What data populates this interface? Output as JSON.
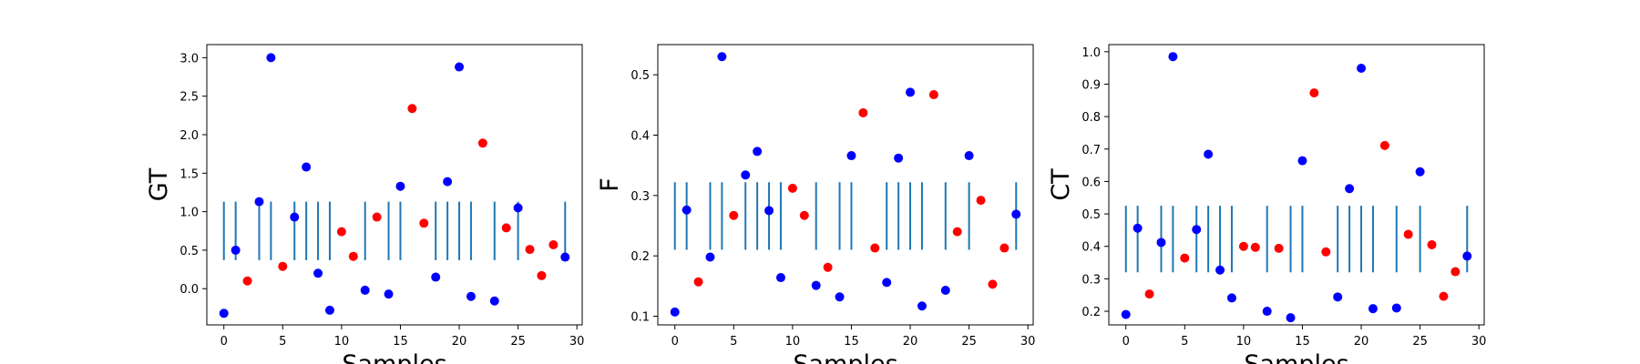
{
  "chart_data": [
    {
      "type": "scatter",
      "ylabel": "GT",
      "xlabel": "Samples",
      "xlim": [
        -1.45,
        30.45
      ],
      "ylim": [
        -0.47,
        3.17
      ],
      "xticks": [
        0,
        5,
        10,
        15,
        20,
        25,
        30
      ],
      "xtick_labels": [
        "0",
        "5",
        "10",
        "15",
        "20",
        "25",
        "30"
      ],
      "yticks": [
        0.0,
        0.5,
        1.0,
        1.5,
        2.0,
        2.5,
        3.0
      ],
      "ytick_labels": [
        "0.0",
        "0.5",
        "1.0",
        "1.5",
        "2.0",
        "2.5",
        "3.0"
      ],
      "vline_positions": [
        0,
        1,
        3,
        4,
        6,
        7,
        8,
        9,
        12,
        14,
        15,
        18,
        19,
        20,
        21,
        23,
        25,
        29
      ],
      "vline_range": [
        0.37,
        1.13
      ],
      "series": [
        {
          "color": "#0000ff",
          "x": [
            0,
            1,
            3,
            4,
            6,
            7,
            8,
            9,
            12,
            14,
            15,
            18,
            19,
            20,
            21,
            23,
            25,
            29
          ],
          "y": [
            -0.32,
            0.5,
            1.13,
            3.0,
            0.93,
            1.58,
            0.2,
            -0.28,
            -0.02,
            -0.07,
            1.33,
            0.15,
            1.39,
            2.88,
            -0.1,
            -0.16,
            1.05,
            0.41
          ]
        },
        {
          "color": "#ff0000",
          "x": [
            2,
            5,
            10,
            11,
            13,
            16,
            17,
            22,
            24,
            26,
            27,
            28
          ],
          "y": [
            0.1,
            0.29,
            0.74,
            0.42,
            0.93,
            2.34,
            0.85,
            1.89,
            0.79,
            0.51,
            0.17,
            0.57
          ]
        }
      ]
    },
    {
      "type": "scatter",
      "ylabel": "F",
      "xlabel": "Samples",
      "xlim": [
        -1.45,
        30.45
      ],
      "ylim": [
        0.0857,
        0.55
      ],
      "xticks": [
        0,
        5,
        10,
        15,
        20,
        25,
        30
      ],
      "xtick_labels": [
        "0",
        "5",
        "10",
        "15",
        "20",
        "25",
        "30"
      ],
      "yticks": [
        0.1,
        0.2,
        0.3,
        0.4,
        0.5
      ],
      "ytick_labels": [
        "0.1",
        "0.2",
        "0.3",
        "0.4",
        "0.5"
      ],
      "vline_positions": [
        0,
        1,
        3,
        4,
        6,
        7,
        8,
        9,
        12,
        14,
        15,
        18,
        19,
        20,
        21,
        23,
        25,
        29
      ],
      "vline_range": [
        0.21,
        0.322
      ],
      "series": [
        {
          "color": "#0000ff",
          "x": [
            0,
            1,
            3,
            4,
            6,
            7,
            8,
            9,
            12,
            14,
            15,
            18,
            19,
            20,
            21,
            23,
            25,
            29
          ],
          "y": [
            0.107,
            0.276,
            0.198,
            0.53,
            0.334,
            0.373,
            0.275,
            0.164,
            0.151,
            0.132,
            0.366,
            0.156,
            0.362,
            0.471,
            0.117,
            0.143,
            0.366,
            0.269
          ]
        },
        {
          "color": "#ff0000",
          "x": [
            2,
            5,
            10,
            11,
            13,
            16,
            17,
            22,
            24,
            26,
            27,
            28
          ],
          "y": [
            0.157,
            0.267,
            0.312,
            0.267,
            0.181,
            0.437,
            0.213,
            0.467,
            0.24,
            0.292,
            0.153,
            0.213
          ]
        }
      ]
    },
    {
      "type": "scatter",
      "ylabel": "CT",
      "xlabel": "Samples",
      "xlim": [
        -1.45,
        30.45
      ],
      "ylim": [
        0.158,
        1.022
      ],
      "xticks": [
        0,
        5,
        10,
        15,
        20,
        25,
        30
      ],
      "xtick_labels": [
        "0",
        "5",
        "10",
        "15",
        "20",
        "25",
        "30"
      ],
      "yticks": [
        0.2,
        0.3,
        0.4,
        0.5,
        0.6,
        0.7,
        0.8,
        0.9,
        1.0
      ],
      "ytick_labels": [
        "0.2",
        "0.3",
        "0.4",
        "0.5",
        "0.6",
        "0.7",
        "0.8",
        "0.9",
        "1.0"
      ],
      "vline_positions": [
        0,
        1,
        3,
        4,
        6,
        7,
        8,
        9,
        12,
        14,
        15,
        18,
        19,
        20,
        21,
        23,
        25,
        29
      ],
      "vline_range": [
        0.32,
        0.525
      ],
      "series": [
        {
          "color": "#0000ff",
          "x": [
            0,
            1,
            3,
            4,
            6,
            7,
            8,
            9,
            12,
            14,
            15,
            18,
            19,
            20,
            21,
            23,
            25,
            29
          ],
          "y": [
            0.19,
            0.456,
            0.412,
            0.985,
            0.452,
            0.684,
            0.327,
            0.241,
            0.2,
            0.18,
            0.664,
            0.244,
            0.578,
            0.949,
            0.208,
            0.21,
            0.63,
            0.37
          ]
        },
        {
          "color": "#ff0000",
          "x": [
            2,
            5,
            10,
            11,
            13,
            16,
            17,
            22,
            24,
            26,
            27,
            28
          ],
          "y": [
            0.253,
            0.364,
            0.4,
            0.397,
            0.394,
            0.873,
            0.383,
            0.711,
            0.437,
            0.405,
            0.246,
            0.322
          ]
        }
      ]
    }
  ],
  "colors": {
    "vline": "#1f77b4",
    "axis": "#000000"
  }
}
